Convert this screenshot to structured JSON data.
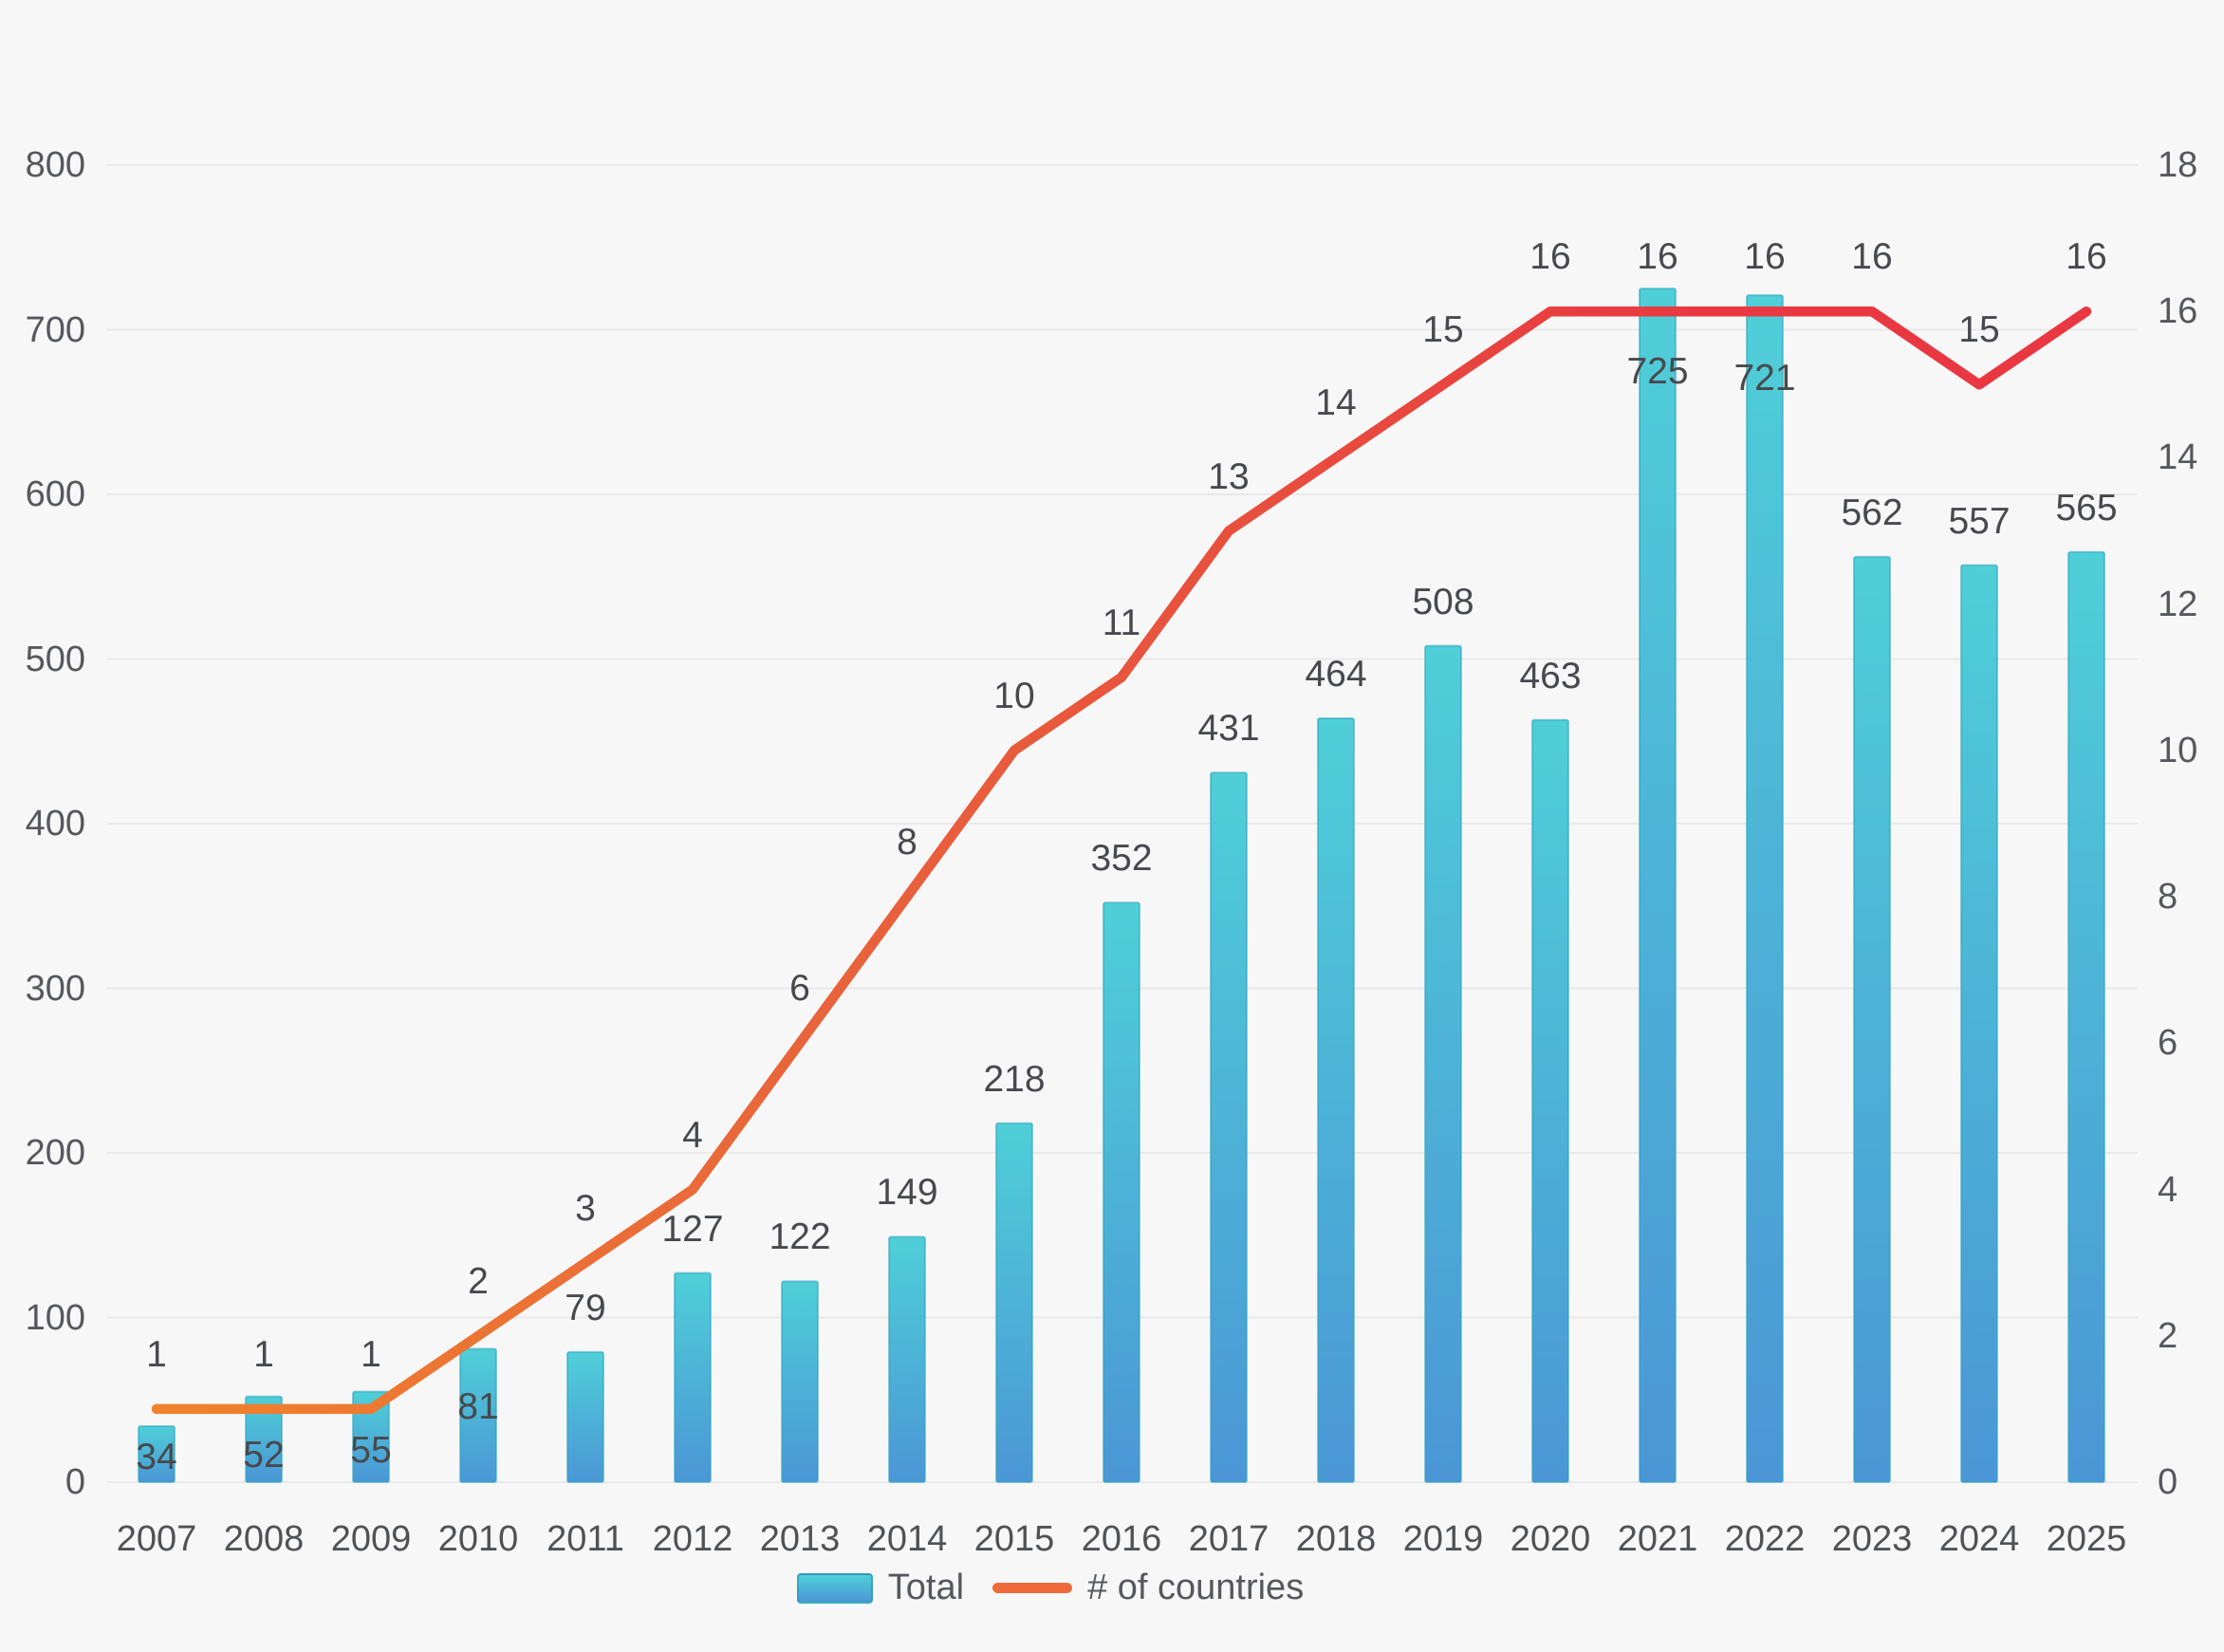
{
  "legend": {
    "total_label": "Total",
    "countries_label": "# of countries"
  },
  "chart_data": {
    "type": "bar",
    "subtype": "combo bar + line, dual axis",
    "title": "",
    "categories": [
      "2007",
      "2008",
      "2009",
      "2010",
      "2011",
      "2012",
      "2013",
      "2014",
      "2015",
      "2016",
      "2017",
      "2018",
      "2019",
      "2020",
      "2021",
      "2022",
      "2023",
      "2024",
      "2025"
    ],
    "series": [
      {
        "name": "Total",
        "type": "bar",
        "axis": "left",
        "values": [
          34,
          52,
          55,
          81,
          79,
          127,
          122,
          149,
          218,
          352,
          431,
          464,
          508,
          463,
          725,
          721,
          562,
          557,
          565
        ],
        "color_top": "#4fcfd8",
        "color_bottom": "#4b96d6",
        "border_color": "#2ba4bd"
      },
      {
        "name": "# of countries",
        "type": "line",
        "axis": "right",
        "values": [
          1,
          1,
          1,
          2,
          3,
          4,
          6,
          8,
          10,
          11,
          13,
          14,
          15,
          16,
          16,
          16,
          16,
          15,
          16
        ],
        "color_start": "#f0832d",
        "color_end": "#e93841"
      }
    ],
    "left_axis": {
      "min": 0,
      "max": 800,
      "tick_step": 100,
      "tick_labels": [
        "0",
        "100",
        "200",
        "300",
        "400",
        "500",
        "600",
        "700",
        "800"
      ]
    },
    "right_axis": {
      "min": 0,
      "max": 18,
      "tick_step": 2,
      "tick_labels": [
        "0",
        "2",
        "4",
        "6",
        "8",
        "10",
        "12",
        "14",
        "16",
        "18"
      ]
    },
    "grid": "horizontal gridlines on",
    "legend_position": "bottom-center",
    "background": "#f7f7f8",
    "value_labels": "every bar and every line point labeled",
    "label_inside_years": [
      "2007",
      "2008",
      "2009",
      "2010",
      "2021",
      "2022"
    ]
  }
}
